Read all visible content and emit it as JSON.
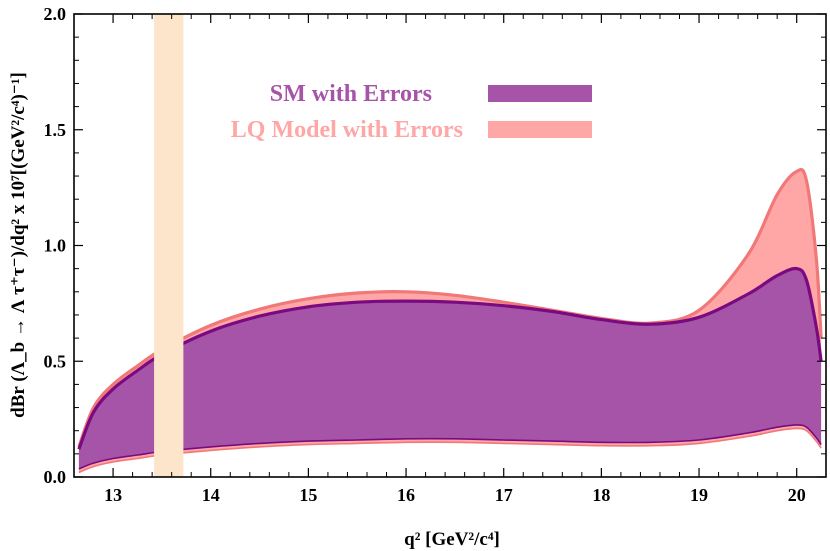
{
  "chart_data": {
    "type": "area",
    "xlabel": "q² [GeV²/c⁴]",
    "ylabel": "dBr (Λ_b → Λ τ⁺τ⁻)/dq² x 10⁷[(GeV²/c⁴)⁻¹]",
    "xlim": [
      12.6,
      20.3
    ],
    "ylim": [
      0.0,
      2.0
    ],
    "x_ticks": [
      "13",
      "14",
      "15",
      "16",
      "17",
      "18",
      "19",
      "20"
    ],
    "y_ticks": [
      "0.0",
      "0.5",
      "1.0",
      "1.5",
      "2.0"
    ],
    "x_tick_values": [
      13,
      14,
      15,
      16,
      17,
      18,
      19,
      20
    ],
    "y_tick_values": [
      0.0,
      0.5,
      1.0,
      1.5,
      2.0
    ],
    "highlight_band": {
      "x_start": 13.42,
      "x_end": 13.72,
      "color": "#fde5cc"
    },
    "grid": false,
    "legend_position": "top-center",
    "x": [
      12.65,
      12.8,
      13.0,
      13.25,
      13.5,
      14.0,
      14.5,
      15.0,
      15.5,
      16.0,
      16.5,
      17.0,
      17.5,
      18.0,
      18.5,
      19.0,
      19.5,
      19.8,
      20.0,
      20.1,
      20.2,
      20.25
    ],
    "series": [
      {
        "name": "SM with Errors",
        "color": "#a554a8",
        "edge_color": "#7a0a80",
        "upper": [
          0.12,
          0.28,
          0.38,
          0.46,
          0.53,
          0.63,
          0.695,
          0.735,
          0.755,
          0.76,
          0.755,
          0.74,
          0.715,
          0.68,
          0.66,
          0.69,
          0.79,
          0.87,
          0.9,
          0.85,
          0.65,
          0.5
        ],
        "lower": [
          0.035,
          0.06,
          0.08,
          0.095,
          0.11,
          0.13,
          0.145,
          0.155,
          0.16,
          0.165,
          0.165,
          0.16,
          0.155,
          0.15,
          0.15,
          0.16,
          0.19,
          0.215,
          0.225,
          0.215,
          0.17,
          0.14
        ]
      },
      {
        "name": "LQ Model with Errors",
        "color": "#ffa6a6",
        "edge_color": "#f07878",
        "upper": [
          0.13,
          0.3,
          0.4,
          0.48,
          0.55,
          0.655,
          0.725,
          0.77,
          0.795,
          0.8,
          0.785,
          0.755,
          0.72,
          0.685,
          0.665,
          0.72,
          0.96,
          1.22,
          1.32,
          1.28,
          0.95,
          0.6
        ],
        "lower": [
          0.02,
          0.045,
          0.065,
          0.08,
          0.095,
          0.115,
          0.13,
          0.14,
          0.145,
          0.15,
          0.15,
          0.145,
          0.14,
          0.135,
          0.135,
          0.145,
          0.175,
          0.2,
          0.21,
          0.2,
          0.155,
          0.125
        ]
      }
    ]
  }
}
